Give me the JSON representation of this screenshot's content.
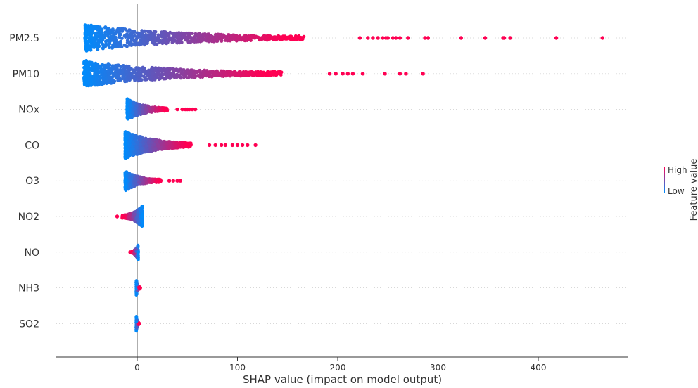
{
  "chart_data": {
    "type": "scatter",
    "subtype": "shap_beeswarm",
    "xlabel": "SHAP value (impact on model output)",
    "xticks": [
      0,
      100,
      200,
      300,
      400
    ],
    "xlim": [
      -80,
      490
    ],
    "grid": false,
    "features": [
      {
        "name": "PM2.5",
        "spread": 70,
        "tail": [
          222,
          230,
          235,
          240,
          245,
          248,
          250,
          255,
          258,
          262,
          270,
          287,
          290,
          323,
          347,
          365,
          366,
          372,
          418,
          464
        ],
        "left": [
          -52
        ],
        "dir": "pos"
      },
      {
        "name": "PM10",
        "spread": 72,
        "tail": [
          192,
          198,
          205,
          210,
          215,
          225,
          247,
          262,
          268,
          285
        ],
        "left": [
          -53
        ],
        "dir": "pos"
      },
      {
        "name": "NOx",
        "spread": 18,
        "tail": [
          40,
          45,
          48,
          50,
          52,
          55,
          58
        ],
        "left": [
          -10
        ],
        "dir": "pos"
      },
      {
        "name": "CO",
        "spread": 40,
        "tail": [
          72,
          78,
          84,
          88,
          95,
          100,
          105,
          110,
          118
        ],
        "left": [
          -12
        ],
        "dir": "pos"
      },
      {
        "name": "O3",
        "spread": 28,
        "tail": [
          32,
          36,
          40,
          43
        ],
        "left": [
          -12
        ],
        "dir": "pos"
      },
      {
        "name": "NO2",
        "spread": 20,
        "tail": [
          -20
        ],
        "left": [
          5
        ],
        "dir": "neg"
      },
      {
        "name": "NO",
        "spread": 8,
        "tail": [
          -7
        ],
        "left": [
          1
        ],
        "dir": "neg"
      },
      {
        "name": "NH3",
        "spread": 3,
        "tail": [
          3
        ],
        "left": [],
        "dir": "pos"
      },
      {
        "name": "SO2",
        "spread": 3,
        "tail": [
          2
        ],
        "left": [],
        "dir": "pos"
      }
    ],
    "colorbar": {
      "title": "Feature value",
      "high_label": "High",
      "low_label": "Low"
    },
    "colors": {
      "low": "#008bfb",
      "high": "#ff0052",
      "axis": "#333333",
      "zero_line": "#999999",
      "row_line": "#cccccc"
    }
  }
}
